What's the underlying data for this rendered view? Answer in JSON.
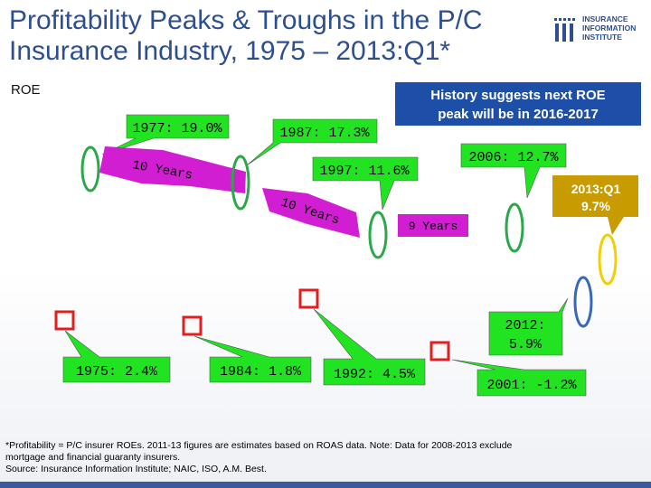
{
  "header": {
    "title_line1": "Profitability Peaks & Troughs in the P/C",
    "title_line2": "Insurance Industry, 1975 – 2013:Q1*",
    "logo_lines": [
      "INSURANCE",
      "INFORMATION",
      "INSTITUTE"
    ]
  },
  "colors": {
    "title": "#2e4f8f",
    "peak_ellipse": "#2aa84a",
    "trough_square": "#e02020",
    "callout_fill": "#22e322",
    "cycle_label_fill": "#d21ed2",
    "latest_label_fill": "#c89b00",
    "latest_ellipse": "#f0d000",
    "history_box_fill": "#1e4fa8",
    "recent_ellipse": "#3a68b8"
  },
  "chart_data": {
    "type": "annotation",
    "ylabel": "ROE",
    "peaks": [
      {
        "year": "1977",
        "roe": 19.0,
        "label": "1977: 19.0%"
      },
      {
        "year": "1987",
        "roe": 17.3,
        "label": "1987: 17.3%"
      },
      {
        "year": "1997",
        "roe": 11.6,
        "label": "1997: 11.6%"
      },
      {
        "year": "2006",
        "roe": 12.7,
        "label": "2006: 12.7%"
      }
    ],
    "troughs": [
      {
        "year": "1975",
        "roe": 2.4,
        "label": "1975: 2.4%"
      },
      {
        "year": "1984",
        "roe": 1.8,
        "label": "1984: 1.8%"
      },
      {
        "year": "1992",
        "roe": 4.5,
        "label": "1992: 4.5%"
      },
      {
        "year": "2001",
        "roe": -1.2,
        "label": "2001: -1.2%"
      }
    ],
    "recent": [
      {
        "year": "2012",
        "roe": 5.9,
        "label_line1": "2012:",
        "label_line2": "5.9%"
      },
      {
        "year": "2013:Q1",
        "roe": 9.7,
        "label_line1": "2013:Q1",
        "label_line2": "9.7%"
      }
    ],
    "cycle_labels": [
      "10 Years",
      "10 Years",
      "9 Years"
    ],
    "history_note": [
      "History suggests next ROE",
      "peak will be in 2016-2017"
    ]
  },
  "footnote": {
    "line1": "*Profitability = P/C insurer ROEs. 2011-13 figures are estimates based on ROAS data. Note: Data for 2008-2013 exclude",
    "line2": "mortgage and financial guaranty insurers.",
    "line3": "Source: Insurance Information Institute; NAIC, ISO, A.M. Best."
  }
}
